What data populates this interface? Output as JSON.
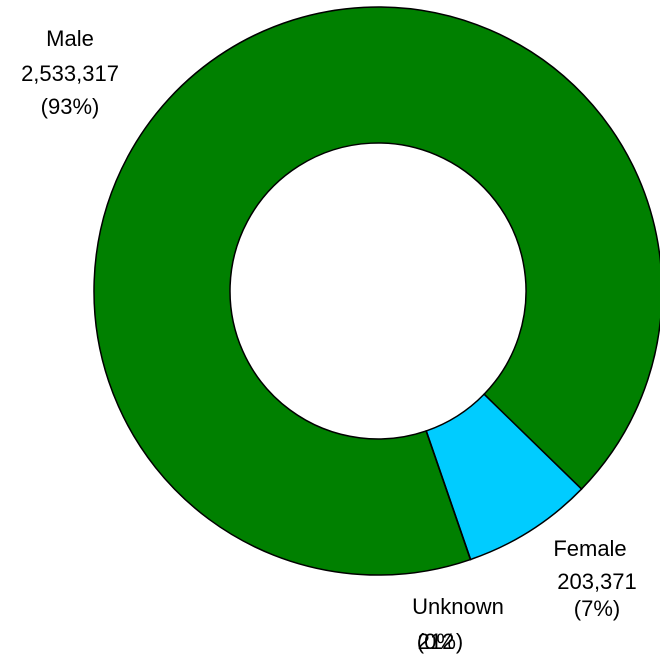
{
  "chart_data": {
    "type": "donut",
    "categories": [
      "Male",
      "Female",
      "Unknown"
    ],
    "values": [
      2533317,
      203371,
      212
    ],
    "value_labels": [
      "2,533,317",
      "203,371",
      "212"
    ],
    "percent_labels": [
      "(93%)",
      "(7%)",
      "(0%)"
    ],
    "colors": [
      "#008000",
      "#00ccff",
      "#7f7f7f"
    ]
  }
}
